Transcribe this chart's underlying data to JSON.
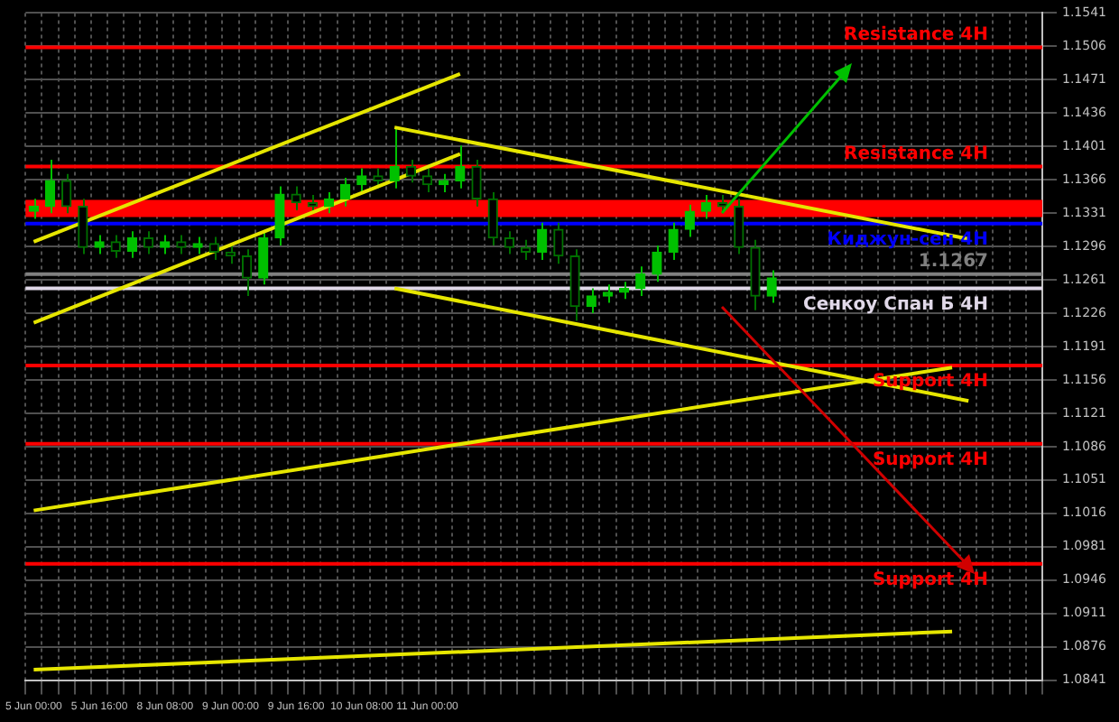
{
  "chart_data": {
    "type": "candlestick",
    "categories": [
      "5 Jun 00:00",
      null,
      null,
      null,
      "5 Jun 16:00",
      null,
      null,
      null,
      "8 Jun 08:00",
      null,
      null,
      null,
      "9 Jun 00:00",
      null,
      null,
      null,
      "9 Jun 16:00",
      null,
      null,
      null,
      "10 Jun 08:00",
      null,
      null,
      null,
      "11 Jun 00:00",
      null,
      null,
      null,
      null,
      null,
      null,
      null,
      null,
      null,
      null,
      null,
      null,
      null,
      null,
      null,
      null,
      null,
      null,
      null,
      null,
      null,
      null,
      null,
      null,
      null,
      null,
      null,
      null,
      null,
      null,
      null,
      null,
      null,
      null,
      null,
      null,
      null
    ],
    "ohlc": [
      [
        1.1333,
        1.1346,
        1.1325,
        1.1338
      ],
      [
        1.1338,
        1.1387,
        1.1331,
        1.1365
      ],
      [
        1.1365,
        1.1372,
        1.1331,
        1.1338
      ],
      [
        1.1338,
        1.1346,
        1.1288,
        1.1295
      ],
      [
        1.1295,
        1.1308,
        1.1288,
        1.1301
      ],
      [
        1.1301,
        1.1308,
        1.1284,
        1.1291
      ],
      [
        1.1291,
        1.1312,
        1.1284,
        1.1305
      ],
      [
        1.1305,
        1.1312,
        1.1288,
        1.1295
      ],
      [
        1.1295,
        1.1308,
        1.1288,
        1.1301
      ],
      [
        1.1301,
        1.1308,
        1.1288,
        1.1295
      ],
      [
        1.1295,
        1.1306,
        1.1288,
        1.1299
      ],
      [
        1.1299,
        1.1306,
        1.1282,
        1.129
      ],
      [
        1.129,
        1.1297,
        1.1278,
        1.1286
      ],
      [
        1.1286,
        1.1293,
        1.1244,
        1.1263
      ],
      [
        1.1263,
        1.1312,
        1.1256,
        1.1305
      ],
      [
        1.1305,
        1.1359,
        1.1297,
        1.1351
      ],
      [
        1.1351,
        1.1359,
        1.1334,
        1.1342
      ],
      [
        1.1342,
        1.135,
        1.1331,
        1.1338
      ],
      [
        1.1338,
        1.1353,
        1.1331,
        1.1346
      ],
      [
        1.1346,
        1.1368,
        1.1338,
        1.1361
      ],
      [
        1.1361,
        1.1378,
        1.1353,
        1.137
      ],
      [
        1.137,
        1.1378,
        1.1357,
        1.1365
      ],
      [
        1.1365,
        1.1421,
        1.1357,
        1.138
      ],
      [
        1.138,
        1.1387,
        1.1363,
        1.137
      ],
      [
        1.137,
        1.1378,
        1.1353,
        1.1361
      ],
      [
        1.1361,
        1.1372,
        1.1353,
        1.1365
      ],
      [
        1.1365,
        1.1402,
        1.1357,
        1.138
      ],
      [
        1.138,
        1.1387,
        1.1338,
        1.1346
      ],
      [
        1.1346,
        1.1353,
        1.1297,
        1.1305
      ],
      [
        1.1305,
        1.1312,
        1.1288,
        1.1295
      ],
      [
        1.1295,
        1.1303,
        1.1282,
        1.129
      ],
      [
        1.129,
        1.1321,
        1.1282,
        1.1314
      ],
      [
        1.1314,
        1.1321,
        1.1278,
        1.1286
      ],
      [
        1.1286,
        1.1293,
        1.1218,
        1.1233
      ],
      [
        1.1233,
        1.1252,
        1.1226,
        1.1244
      ],
      [
        1.1244,
        1.1256,
        1.1237,
        1.1248
      ],
      [
        1.1248,
        1.1259,
        1.1241,
        1.1252
      ],
      [
        1.1252,
        1.1275,
        1.1244,
        1.1267
      ],
      [
        1.1267,
        1.1297,
        1.1259,
        1.129
      ],
      [
        1.129,
        1.1321,
        1.1282,
        1.1314
      ],
      [
        1.1314,
        1.134,
        1.1306,
        1.1333
      ],
      [
        1.1333,
        1.135,
        1.1325,
        1.1342
      ],
      [
        1.1342,
        1.135,
        1.1331,
        1.1338
      ],
      [
        1.1338,
        1.1346,
        1.1288,
        1.1295
      ],
      [
        1.1295,
        1.1303,
        1.1229,
        1.1244
      ],
      [
        1.1244,
        1.1271,
        1.1237,
        1.1263
      ],
      null,
      null,
      null,
      null,
      null,
      null,
      null,
      null,
      null,
      null,
      null,
      null,
      null,
      null,
      null,
      null
    ],
    "colors": [
      "#00c000",
      "#00c000",
      "#007000",
      "#007000",
      "#00c000",
      "#007000",
      "#00c000",
      "#007000",
      "#00c000",
      "#007000",
      "#00c000",
      "#007000",
      "#007000",
      "#007000",
      "#00c000",
      "#00c000",
      "#007000",
      "#007000",
      "#00c000",
      "#00c000",
      "#00c000",
      "#007000",
      "#00c000",
      "#007000",
      "#007000",
      "#00c000",
      "#00c000",
      "#007000",
      "#007000",
      "#007000",
      "#007000",
      "#00c000",
      "#007000",
      "#007000",
      "#00c000",
      "#00c000",
      "#00c000",
      "#00c000",
      "#00c000",
      "#00c000",
      "#00c000",
      "#00c000",
      "#007000",
      "#007000",
      "#007000",
      "#00c000",
      null,
      null,
      null,
      null,
      null,
      null,
      null,
      null,
      null,
      null,
      null,
      null,
      null,
      null,
      null,
      null
    ],
    "series": [
      {
        "type": "line",
        "color": "#e6e600",
        "values": [
          1.1301,
          null,
          null,
          null,
          null,
          null,
          null,
          null,
          null,
          null,
          null,
          null,
          null,
          null,
          null,
          null,
          null,
          null,
          null,
          null,
          null,
          null,
          null,
          null,
          null,
          null,
          1.1477,
          null,
          null,
          null,
          null,
          null,
          null,
          null,
          null,
          null,
          null,
          null,
          null,
          null,
          null,
          null,
          null,
          null,
          null,
          null,
          null,
          null,
          null,
          null,
          null,
          null,
          null,
          null,
          null,
          null,
          null,
          null,
          null,
          null,
          null,
          null
        ]
      },
      {
        "type": "line",
        "color": "#e6e600",
        "values": [
          1.1216,
          null,
          null,
          null,
          null,
          null,
          null,
          null,
          null,
          null,
          null,
          null,
          null,
          null,
          null,
          null,
          null,
          null,
          null,
          null,
          null,
          null,
          null,
          null,
          null,
          null,
          1.1393,
          null,
          null,
          null,
          null,
          null,
          null,
          null,
          null,
          null,
          null,
          null,
          null,
          null,
          null,
          null,
          null,
          null,
          null,
          null,
          null,
          null,
          null,
          null,
          null,
          null,
          null,
          null,
          null,
          null,
          null,
          null,
          null,
          null,
          null,
          null
        ]
      },
      {
        "type": "line",
        "color": "#e6e600",
        "values": [
          null,
          null,
          null,
          null,
          null,
          null,
          null,
          null,
          null,
          null,
          null,
          null,
          null,
          null,
          null,
          null,
          null,
          null,
          null,
          null,
          null,
          null,
          1.1421,
          null,
          null,
          null,
          null,
          null,
          null,
          null,
          null,
          null,
          null,
          null,
          null,
          null,
          null,
          null,
          null,
          null,
          null,
          null,
          null,
          null,
          null,
          null,
          null,
          null,
          null,
          null,
          null,
          null,
          null,
          null,
          null,
          null,
          null,
          1.1304,
          null,
          null,
          null,
          null
        ]
      },
      {
        "type": "line",
        "color": "#e6e600",
        "values": [
          null,
          null,
          null,
          null,
          null,
          null,
          null,
          null,
          null,
          null,
          null,
          null,
          null,
          null,
          null,
          null,
          null,
          null,
          null,
          null,
          null,
          null,
          1.1252,
          null,
          null,
          null,
          null,
          null,
          null,
          null,
          null,
          null,
          null,
          null,
          null,
          null,
          null,
          null,
          null,
          null,
          null,
          null,
          null,
          null,
          null,
          null,
          null,
          null,
          null,
          null,
          null,
          null,
          null,
          null,
          null,
          null,
          null,
          1.1134,
          null,
          null,
          null,
          null
        ]
      },
      {
        "type": "line",
        "color": "#e6e600",
        "values": [
          1.1019,
          null,
          null,
          null,
          null,
          null,
          null,
          null,
          null,
          null,
          null,
          null,
          null,
          null,
          null,
          null,
          null,
          null,
          null,
          null,
          null,
          null,
          null,
          null,
          null,
          null,
          null,
          null,
          null,
          null,
          null,
          null,
          null,
          null,
          null,
          null,
          null,
          null,
          null,
          null,
          null,
          null,
          null,
          null,
          null,
          null,
          null,
          null,
          null,
          null,
          null,
          null,
          null,
          null,
          null,
          null,
          1.1169,
          null,
          null,
          null,
          null,
          null
        ]
      },
      {
        "type": "line",
        "color": "#e6e600",
        "values": [
          1.0852,
          null,
          null,
          null,
          null,
          null,
          null,
          null,
          null,
          null,
          null,
          null,
          null,
          null,
          null,
          null,
          null,
          null,
          null,
          null,
          null,
          null,
          null,
          null,
          null,
          null,
          null,
          null,
          null,
          null,
          null,
          null,
          null,
          null,
          null,
          null,
          null,
          null,
          null,
          null,
          null,
          null,
          null,
          null,
          null,
          null,
          null,
          null,
          null,
          null,
          null,
          null,
          null,
          null,
          null,
          null,
          1.0892,
          null,
          null,
          null,
          null,
          null
        ]
      }
    ],
    "ylim": [
      1.0841,
      1.1541
    ],
    "yticks": [
      1.0841,
      1.0876,
      1.0911,
      1.0946,
      1.0981,
      1.1016,
      1.1051,
      1.1086,
      1.1121,
      1.1156,
      1.1191,
      1.1226,
      1.1261,
      1.1296,
      1.1331,
      1.1366,
      1.1401,
      1.1436,
      1.1471,
      1.1506,
      1.1541
    ],
    "bands": [
      {
        "axis": "y",
        "from": 1.1327,
        "to": 1.1345,
        "color": "#ff0000"
      }
    ],
    "ref_lines": [
      {
        "axis": "y",
        "value": 1.1505,
        "label": "Resistance 4H",
        "color": "#ff0000"
      },
      {
        "axis": "y",
        "value": 1.138,
        "label": "Resistance 4H",
        "color": "#ff0000"
      },
      {
        "axis": "y",
        "value": 1.132,
        "label": "Киджун-сен 4H",
        "color": "#0000ff"
      },
      {
        "axis": "y",
        "value": 1.1267,
        "label": "1.1267",
        "color": "#808080"
      },
      {
        "axis": "y",
        "value": 1.1252,
        "label": "Сенкоу Спан Б 4H",
        "color": "#e0d8e8"
      },
      {
        "axis": "y",
        "value": 1.1171,
        "label": "Support 4H",
        "color": "#ff0000"
      },
      {
        "axis": "y",
        "value": 1.1089,
        "label": "Support 4H",
        "color": "#ff0000"
      },
      {
        "axis": "y",
        "value": 1.0963,
        "label": "Support 4H",
        "color": "#ff0000"
      }
    ],
    "grid": true,
    "legend": false
  }
}
